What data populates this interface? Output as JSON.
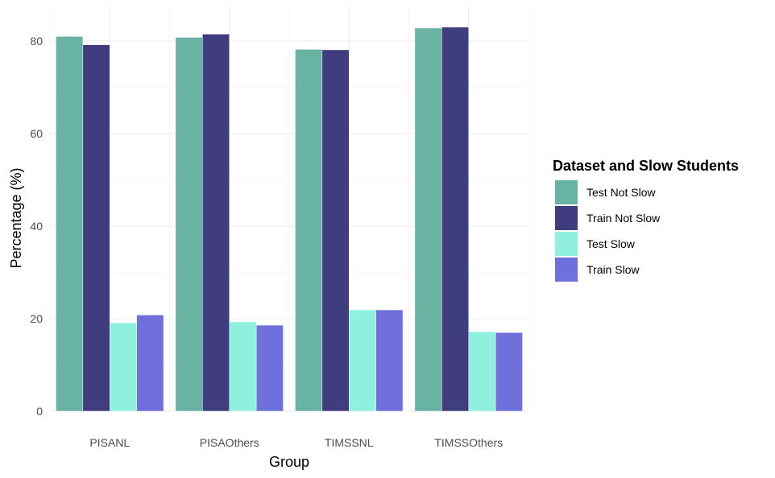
{
  "chart_data": {
    "type": "bar",
    "title": "",
    "xlabel": "Group",
    "ylabel": "Percentage (%)",
    "categories": [
      "PISANL",
      "PISAOthers",
      "TIMSSNL",
      "TIMSSOthers"
    ],
    "ylim": [
      0,
      90
    ],
    "yticks": [
      "0",
      "20",
      "40",
      "60",
      "80"
    ],
    "grid": true,
    "legend": {
      "title": "Dataset and Slow Students",
      "placement": "right"
    },
    "series": [
      {
        "name": "Test Not Slow",
        "color": "#69b3a2",
        "values": [
          81.0,
          80.8,
          78.2,
          82.8
        ]
      },
      {
        "name": "Train Not Slow",
        "color": "#3f3d7e",
        "values": [
          79.2,
          81.5,
          78.1,
          83.0
        ]
      },
      {
        "name": "Test Slow",
        "color": "#8ff0dd",
        "values": [
          19.1,
          19.3,
          21.9,
          17.2
        ]
      },
      {
        "name": "Train Slow",
        "color": "#7070dc",
        "values": [
          20.8,
          18.6,
          21.9,
          17.0
        ]
      }
    ]
  }
}
